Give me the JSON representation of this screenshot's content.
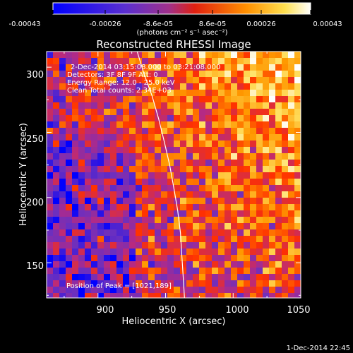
{
  "colorbar": {
    "ticks": [
      "-0.00043",
      "-0.00026",
      "-8.6e-05",
      "8.6e-05",
      "0.00026",
      "0.00043"
    ],
    "unit": "(photons cm⁻² s⁻¹ asec⁻²)"
  },
  "chart_data": {
    "type": "heatmap",
    "title": "Reconstructed RHESSI Image",
    "xlabel": "Heliocentric X (arcsec)",
    "ylabel": "Heliocentric Y (arcsec)",
    "xlim": [
      862,
      1050
    ],
    "ylim": [
      123,
      312
    ],
    "x_ticks": [
      "900",
      "950",
      "1000",
      "1050"
    ],
    "y_ticks": [
      "150",
      "200",
      "250",
      "300"
    ],
    "info_lines": [
      "2-Dec-2014 03:15:08.000 to 03:21:08.000",
      "Detectors: 3F 8F 9F  Att: 0",
      "Energy Range: 12.0 - 25.0 keV",
      "Clean    Total counts: 2.34E+03"
    ],
    "peak_label": "Position of Peak = [1021,189]",
    "peak": [
      1021,
      189
    ],
    "limb_curve": [
      [
        929,
        312
      ],
      [
        934,
        295
      ],
      [
        940,
        278
      ],
      [
        945,
        260
      ],
      [
        949,
        243
      ],
      [
        953,
        225
      ],
      [
        956,
        208
      ],
      [
        959,
        190
      ],
      [
        961,
        173
      ],
      [
        962,
        156
      ],
      [
        963,
        140
      ],
      [
        964,
        123
      ]
    ],
    "value_range": [
      -0.00043,
      0.00043
    ],
    "colormap": [
      "#0000ff",
      "#6a2fc0",
      "#b42a85",
      "#ff3000",
      "#ff9a00",
      "#ffe060",
      "#ffffff"
    ]
  },
  "footer": {
    "timestamp": "1-Dec-2014 22:45"
  }
}
